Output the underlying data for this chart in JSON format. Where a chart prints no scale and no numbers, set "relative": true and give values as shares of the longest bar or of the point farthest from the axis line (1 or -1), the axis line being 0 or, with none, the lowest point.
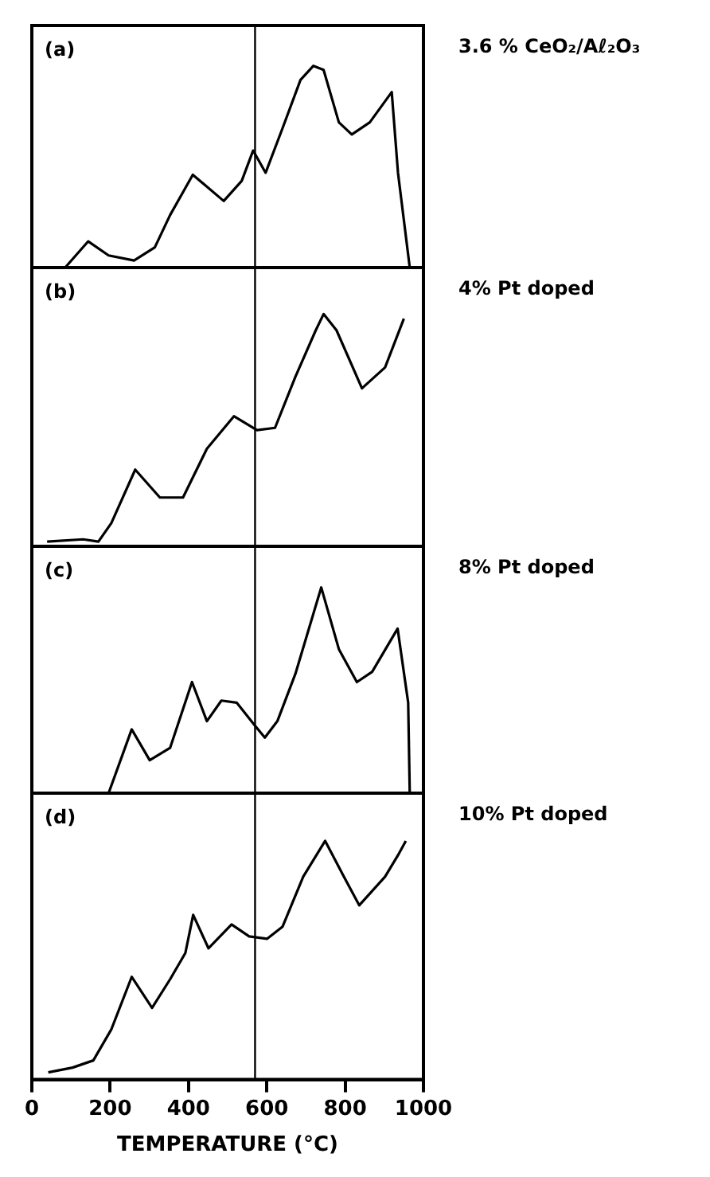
{
  "chart_data": [
    {
      "type": "line",
      "annotations": [
        "(a)"
      ],
      "relative": true,
      "xlim": [
        0,
        1000
      ],
      "tick_labels": false,
      "marker": "none",
      "ref_lines": [
        {
          "axis": "x",
          "value": 570
        }
      ],
      "series": [
        {
          "name": "3.6 % CeO₂/Aℓ₂O₃",
          "color": "#000000",
          "x": [
            85,
            144,
            196,
            261,
            314,
            353,
            411,
            490,
            536,
            565,
            597,
            640,
            686,
            719,
            745,
            784,
            817,
            863,
            919,
            935,
            965
          ],
          "values": [
            0,
            0.13,
            0.06,
            0.035,
            0.1,
            0.26,
            0.46,
            0.33,
            0.43,
            0.58,
            0.47,
            0.69,
            0.93,
            1,
            0.98,
            0.72,
            0.66,
            0.72,
            0.87,
            0.47,
            0
          ]
        }
      ]
    },
    {
      "type": "line",
      "annotations": [
        "(b)"
      ],
      "relative": true,
      "xlim": [
        0,
        1000
      ],
      "tick_labels": false,
      "marker": "none",
      "ref_lines": [
        {
          "axis": "x",
          "value": 570
        }
      ],
      "series": [
        {
          "name": "4% Pt doped",
          "color": "#000000",
          "x": [
            39,
            131,
            170,
            203,
            264,
            327,
            386,
            447,
            516,
            575,
            621,
            673,
            725,
            745,
            778,
            843,
            902,
            950
          ],
          "values": [
            0.02,
            0.03,
            0.02,
            0.1,
            0.33,
            0.21,
            0.21,
            0.42,
            0.56,
            0.5,
            0.51,
            0.73,
            0.93,
            1,
            0.93,
            0.68,
            0.77,
            0.98
          ]
        }
      ]
    },
    {
      "type": "line",
      "annotations": [
        "(c)"
      ],
      "relative": true,
      "xlim": [
        0,
        1000
      ],
      "tick_labels": false,
      "marker": "none",
      "ref_lines": [
        {
          "axis": "x",
          "value": 570
        }
      ],
      "series": [
        {
          "name": "8% Pt doped",
          "color": "#000000",
          "x": [
            196,
            255,
            301,
            353,
            409,
            447,
            484,
            523,
            569,
            595,
            627,
            673,
            739,
            784,
            830,
            869,
            934,
            961,
            965
          ],
          "values": [
            0,
            0.31,
            0.16,
            0.22,
            0.54,
            0.35,
            0.45,
            0.44,
            0.33,
            0.27,
            0.35,
            0.58,
            1,
            0.7,
            0.54,
            0.59,
            0.8,
            0.44,
            0
          ]
        }
      ]
    },
    {
      "type": "line",
      "annotations": [
        "(d)"
      ],
      "relative": true,
      "xlim": [
        0,
        1000
      ],
      "xticks": [
        0,
        200,
        400,
        600,
        800,
        1000
      ],
      "xlabel": "TEMPERATURE (°C)",
      "tick_labels": "x",
      "marker": "none",
      "ref_lines": [
        {
          "axis": "x",
          "value": 570
        }
      ],
      "series": [
        {
          "name": "10% Pt doped",
          "color": "#000000",
          "x": [
            42,
            104,
            157,
            203,
            255,
            307,
            353,
            392,
            412,
            451,
            510,
            555,
            601,
            640,
            693,
            749,
            797,
            836,
            902,
            935,
            955
          ],
          "values": [
            0.03,
            0.05,
            0.08,
            0.21,
            0.43,
            0.3,
            0.42,
            0.53,
            0.69,
            0.55,
            0.65,
            0.6,
            0.59,
            0.64,
            0.85,
            1,
            0.85,
            0.73,
            0.85,
            0.94,
            1
          ]
        }
      ]
    }
  ]
}
